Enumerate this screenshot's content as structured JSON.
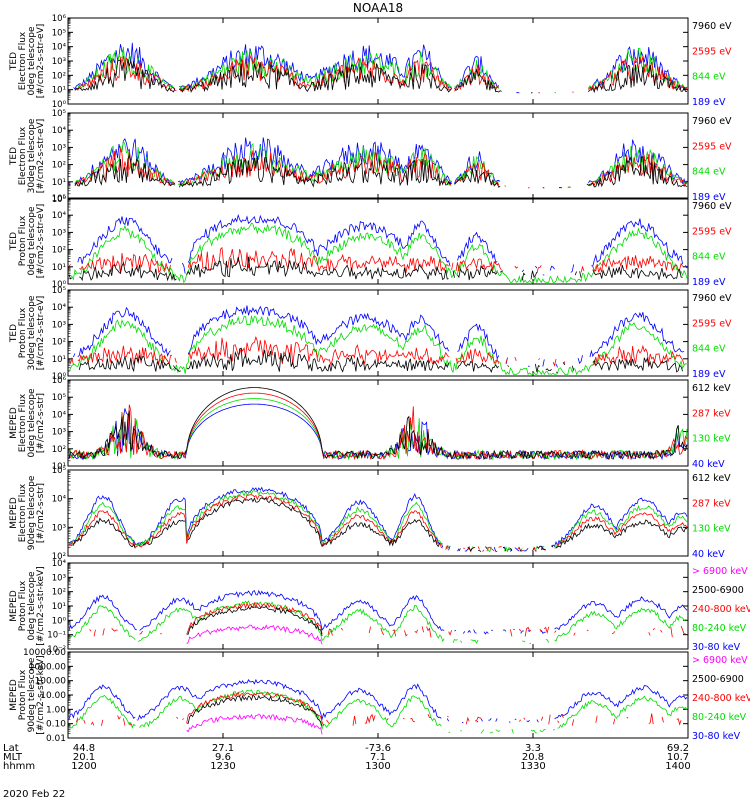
{
  "title": "NOAA18",
  "date_label": "2020 Feb 22",
  "colors": {
    "black": "#000000",
    "red": "#ff0000",
    "green": "#00dd00",
    "blue": "#0000ff",
    "magenta": "#ff00ff",
    "axis": "#000000"
  },
  "x_axis": {
    "row_labels": [
      "Lat",
      "MLT",
      "hhmm"
    ],
    "ticks": [
      {
        "lat": "44.8",
        "mlt": "20.1",
        "hhmm": "1200"
      },
      {
        "lat": "27.1",
        "mlt": "9.6",
        "hhmm": "1230"
      },
      {
        "lat": "-73.6",
        "mlt": "7.1",
        "hhmm": "1300"
      },
      {
        "lat": "3.3",
        "mlt": "20.8",
        "hhmm": "1330"
      },
      {
        "lat": "69.2",
        "mlt": "10.7",
        "hhmm": "1400"
      }
    ]
  },
  "chart_data": [
    {
      "type": "line",
      "ylabel": [
        "TED",
        "Electron Flux",
        "0deg telescope",
        "[#/cm2-s-str-eV]"
      ],
      "ylog": true,
      "yticks": [
        "10⁰",
        "10¹",
        "10²",
        "10³",
        "10⁴",
        "10⁵",
        "10⁶"
      ],
      "x_range": [
        "1200",
        "1400"
      ],
      "series": [
        {
          "name": "7960 eV",
          "color": "#000000"
        },
        {
          "name": "2595 eV",
          "color": "#ff0000"
        },
        {
          "name": "844 eV",
          "color": "#00dd00"
        },
        {
          "name": "189 eV",
          "color": "#0000ff"
        }
      ]
    },
    {
      "type": "line",
      "ylabel": [
        "TED",
        "Electron Flux",
        "30deg telescope",
        "[#/cm2-s-str-eV]"
      ],
      "ylog": true,
      "yticks": [
        "10⁰",
        "10¹",
        "10²",
        "10³",
        "10⁴",
        "10⁵"
      ],
      "x_range": [
        "1200",
        "1400"
      ],
      "series": [
        {
          "name": "7960 eV",
          "color": "#000000"
        },
        {
          "name": "2595 eV",
          "color": "#ff0000"
        },
        {
          "name": "844 eV",
          "color": "#00dd00"
        },
        {
          "name": "189 eV",
          "color": "#0000ff"
        }
      ]
    },
    {
      "type": "line",
      "ylabel": [
        "TED",
        "Proton Flux",
        "0deg telescope",
        "[#/cm2-s-str-eV]"
      ],
      "ylog": true,
      "yticks": [
        "10⁰",
        "10¹",
        "10²",
        "10³",
        "10⁴",
        "10⁵"
      ],
      "x_range": [
        "1200",
        "1400"
      ],
      "series": [
        {
          "name": "7960 eV",
          "color": "#000000"
        },
        {
          "name": "2595 eV",
          "color": "#ff0000"
        },
        {
          "name": "844 eV",
          "color": "#00dd00"
        },
        {
          "name": "189 eV",
          "color": "#0000ff"
        }
      ]
    },
    {
      "type": "line",
      "ylabel": [
        "TED",
        "Proton Flux",
        "30deg telescope",
        "[#/cm2-s-str-eV]"
      ],
      "ylog": true,
      "yticks": [
        "10⁰",
        "10¹",
        "10²",
        "10³",
        "10⁴",
        "10⁵"
      ],
      "x_range": [
        "1200",
        "1400"
      ],
      "series": [
        {
          "name": "7960 eV",
          "color": "#000000"
        },
        {
          "name": "2595 eV",
          "color": "#ff0000"
        },
        {
          "name": "844 eV",
          "color": "#00dd00"
        },
        {
          "name": "189 eV",
          "color": "#0000ff"
        }
      ]
    },
    {
      "type": "line",
      "ylabel": [
        "MEPED",
        "Electron Flux",
        "0deg telescope",
        "[#/cm2-s-str]"
      ],
      "ylog": true,
      "yticks": [
        "10¹",
        "10²",
        "10³",
        "10⁴",
        "10⁵",
        "10⁶"
      ],
      "x_range": [
        "1200",
        "1400"
      ],
      "series": [
        {
          "name": "612 keV",
          "color": "#000000"
        },
        {
          "name": "287 keV",
          "color": "#ff0000"
        },
        {
          "name": "130 keV",
          "color": "#00dd00"
        },
        {
          "name": "40 keV",
          "color": "#0000ff"
        }
      ]
    },
    {
      "type": "line",
      "ylabel": [
        "MEPED",
        "Electron Flux",
        "90deg telescope",
        "[#/cm2-s-str]"
      ],
      "ylog": true,
      "yticks": [
        "10²",
        "10³",
        "10⁴",
        "10⁵"
      ],
      "x_range": [
        "1200",
        "1400"
      ],
      "series": [
        {
          "name": "612 keV",
          "color": "#000000"
        },
        {
          "name": "287 keV",
          "color": "#ff0000"
        },
        {
          "name": "130 keV",
          "color": "#00dd00"
        },
        {
          "name": "40 keV",
          "color": "#0000ff"
        }
      ]
    },
    {
      "type": "line",
      "ylabel": [
        "MEPED",
        "Proton Flux",
        "0deg telescope",
        "[#/cm2-s-str-keV]"
      ],
      "ylog": true,
      "yticks": [
        "10⁻²",
        "10⁻¹",
        "10⁰",
        "10¹",
        "10²",
        "10³",
        "10⁴"
      ],
      "x_range": [
        "1200",
        "1400"
      ],
      "series": [
        {
          "name": "> 6900 keV",
          "color": "#ff00ff"
        },
        {
          "name": "2500-6900",
          "color": "#000000"
        },
        {
          "name": "240-800 keV",
          "color": "#ff0000"
        },
        {
          "name": "80-240 keV",
          "color": "#00dd00"
        },
        {
          "name": "30-80 keV",
          "color": "#0000ff"
        }
      ]
    },
    {
      "type": "line",
      "ylabel": [
        "MEPED",
        "Proton Flux",
        "90deg telescope",
        "[#/cm2-s-str-keV]"
      ],
      "ylog": true,
      "yticks": [
        "0.01",
        "0.10",
        "1.00",
        "10.00",
        "100.00",
        "1000.00",
        "10000.00"
      ],
      "x_range": [
        "1200",
        "1400"
      ],
      "series": [
        {
          "name": "> 6900 keV",
          "color": "#ff00ff"
        },
        {
          "name": "2500-6900",
          "color": "#000000"
        },
        {
          "name": "240-800 keV",
          "color": "#ff0000"
        },
        {
          "name": "80-240 keV",
          "color": "#00dd00"
        },
        {
          "name": "30-80 keV",
          "color": "#0000ff"
        }
      ]
    }
  ]
}
